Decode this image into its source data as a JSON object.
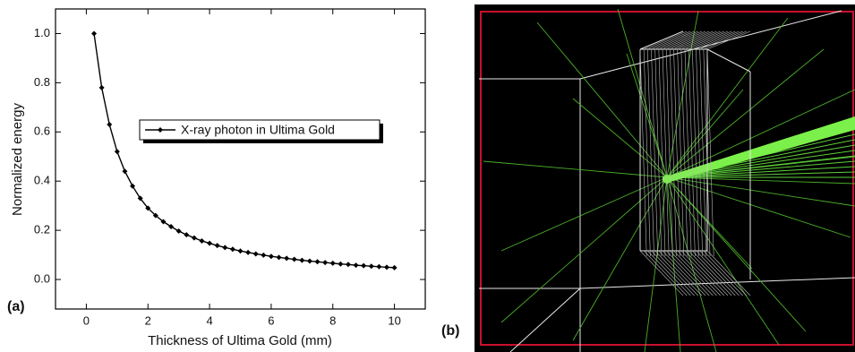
{
  "chart_data": {
    "type": "line",
    "xlabel": "Thickness of Ultima Gold (mm)",
    "ylabel": "Normalized energy",
    "panel_label": "(a)",
    "x": [
      0.25,
      0.5,
      0.75,
      1.0,
      1.25,
      1.5,
      1.75,
      2.0,
      2.25,
      2.5,
      2.75,
      3.0,
      3.25,
      3.5,
      3.75,
      4.0,
      4.25,
      4.5,
      4.75,
      5.0,
      5.25,
      5.5,
      5.75,
      6.0,
      6.25,
      6.5,
      6.75,
      7.0,
      7.25,
      7.5,
      7.75,
      8.0,
      8.25,
      8.5,
      8.75,
      9.0,
      9.25,
      9.5,
      9.75,
      10.0
    ],
    "series": [
      {
        "name": "X-ray photon in Ultima Gold",
        "color": "#000000",
        "values": [
          1.0,
          0.78,
          0.63,
          0.52,
          0.44,
          0.38,
          0.33,
          0.29,
          0.26,
          0.235,
          0.215,
          0.197,
          0.182,
          0.169,
          0.157,
          0.147,
          0.138,
          0.13,
          0.123,
          0.116,
          0.11,
          0.104,
          0.099,
          0.094,
          0.09,
          0.086,
          0.082,
          0.078,
          0.075,
          0.072,
          0.069,
          0.066,
          0.063,
          0.061,
          0.058,
          0.056,
          0.054,
          0.052,
          0.05,
          0.048
        ]
      }
    ],
    "xlim": [
      -1,
      11
    ],
    "xticks": [
      0,
      2,
      4,
      6,
      8,
      10
    ],
    "ylim": [
      -0.12,
      1.1
    ],
    "yticks": [
      {
        "value": 0,
        "label": "0.0"
      },
      {
        "value": 0.2,
        "label": "0.2"
      },
      {
        "value": 0.4,
        "label": "0.4"
      },
      {
        "value": 0.6,
        "label": "0.6"
      },
      {
        "value": 0.8,
        "label": "0.8"
      },
      {
        "value": 1,
        "label": "1.0"
      }
    ],
    "legend": "upper right"
  },
  "image_panel": {
    "label": "(b)"
  }
}
